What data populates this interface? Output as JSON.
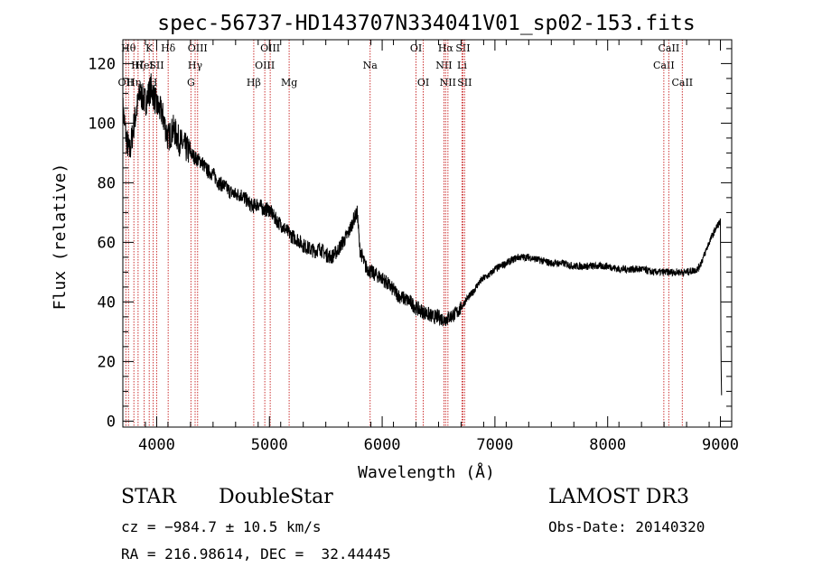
{
  "chart_data": {
    "type": "line",
    "title": "spec-56737-HD143707N334041V01_sp02-153.fits",
    "xlabel": "Wavelength (Å)",
    "ylabel": "Flux (relative)",
    "xlim": [
      3700,
      9100
    ],
    "ylim": [
      -2,
      128
    ],
    "x_ticks": [
      "4000",
      "5000",
      "6000",
      "7000",
      "8000",
      "9000"
    ],
    "y_ticks": [
      "0",
      "20",
      "40",
      "60",
      "80",
      "100",
      "120"
    ],
    "grid": false,
    "series": [
      {
        "x": [
          3700,
          3730,
          3760,
          3800,
          3850,
          3900,
          3950,
          4000,
          4050,
          4100,
          4150,
          4200,
          4250,
          4300,
          4350,
          4400,
          4450,
          4500,
          4550,
          4600,
          4650,
          4700,
          4750,
          4800,
          4850,
          4900,
          4950,
          5000,
          5050,
          5100,
          5150,
          5200,
          5250,
          5300,
          5350,
          5400,
          5450,
          5500,
          5550,
          5600,
          5650,
          5700,
          5750,
          5780,
          5800,
          5850,
          5900,
          5950,
          6000,
          6050,
          6100,
          6150,
          6200,
          6250,
          6300,
          6350,
          6400,
          6450,
          6500,
          6550,
          6600,
          6650,
          6700,
          6750,
          6800,
          6850,
          6900,
          6950,
          7000,
          7100,
          7200,
          7300,
          7400,
          7500,
          7600,
          7700,
          7800,
          7900,
          8000,
          8100,
          8200,
          8300,
          8400,
          8500,
          8600,
          8700,
          8800,
          8850,
          8900,
          8950,
          8980,
          9000,
          9005,
          9010
        ],
        "y": [
          105,
          95,
          90,
          100,
          110,
          107,
          112,
          106,
          103,
          95,
          98,
          94,
          92,
          90,
          88,
          87,
          84,
          83,
          80,
          79,
          77,
          76,
          76,
          74,
          72,
          73,
          71,
          71,
          68,
          66,
          64,
          62,
          61,
          59,
          58,
          57,
          58,
          56,
          55,
          57,
          60,
          63,
          68,
          70,
          58,
          52,
          50,
          49,
          48,
          46,
          44,
          42,
          41,
          40,
          38,
          37,
          36,
          35,
          35,
          34,
          35,
          36,
          38,
          41,
          43,
          46,
          48,
          49,
          51,
          53,
          55,
          55,
          54,
          53,
          53,
          52,
          52,
          52,
          52,
          51,
          51,
          51,
          50,
          50,
          50,
          50,
          51,
          55,
          60,
          64,
          66,
          67,
          20,
          8
        ]
      }
    ],
    "spectral_lines": [
      {
        "label": "OII",
        "x": 3727,
        "row": 3
      },
      {
        "label": "Hθ",
        "x": 3750,
        "row": 1
      },
      {
        "label": "Hη",
        "x": 3798,
        "row": 3
      },
      {
        "label": "Hζ",
        "x": 3835,
        "row": 2
      },
      {
        "label": "HeI",
        "x": 3889,
        "row": 2
      },
      {
        "label": "K",
        "x": 3934,
        "row": 1
      },
      {
        "label": "H",
        "x": 3969,
        "row": 3
      },
      {
        "label": "SII",
        "x": 4000,
        "row": 2
      },
      {
        "label": "Hδ",
        "x": 4102,
        "row": 1
      },
      {
        "label": "G",
        "x": 4304,
        "row": 3
      },
      {
        "label": "Hγ",
        "x": 4341,
        "row": 2
      },
      {
        "label": "OIII",
        "x": 4363,
        "row": 1
      },
      {
        "label": "Hβ",
        "x": 4861,
        "row": 3
      },
      {
        "label": "OIII",
        "x": 4959,
        "row": 2
      },
      {
        "label": "OIII",
        "x": 5007,
        "row": 1
      },
      {
        "label": "Mg",
        "x": 5175,
        "row": 3
      },
      {
        "label": "Na",
        "x": 5893,
        "row": 2
      },
      {
        "label": "OI",
        "x": 6300,
        "row": 1
      },
      {
        "label": "OI",
        "x": 6364,
        "row": 3
      },
      {
        "label": "NII",
        "x": 6548,
        "row": 2
      },
      {
        "label": "Hα",
        "x": 6563,
        "row": 1
      },
      {
        "label": "NII",
        "x": 6583,
        "row": 3
      },
      {
        "label": "Li",
        "x": 6708,
        "row": 2
      },
      {
        "label": "SII",
        "x": 6716,
        "row": 1
      },
      {
        "label": "SII",
        "x": 6731,
        "row": 3
      },
      {
        "label": "CaII",
        "x": 8498,
        "row": 2
      },
      {
        "label": "CaII",
        "x": 8542,
        "row": 1
      },
      {
        "label": "CaII",
        "x": 8662,
        "row": 3
      }
    ]
  },
  "info": {
    "object_class": "STAR",
    "subclass": "DoubleStar",
    "survey": "LAMOST DR3",
    "cz": "cz = −984.7 ± 10.5 km/s",
    "obs_date": "Obs-Date: 20140320",
    "coords": "RA = 216.98614, DEC =  32.44445"
  },
  "colors": {
    "line": "#000000",
    "marker": "#cc3333"
  }
}
